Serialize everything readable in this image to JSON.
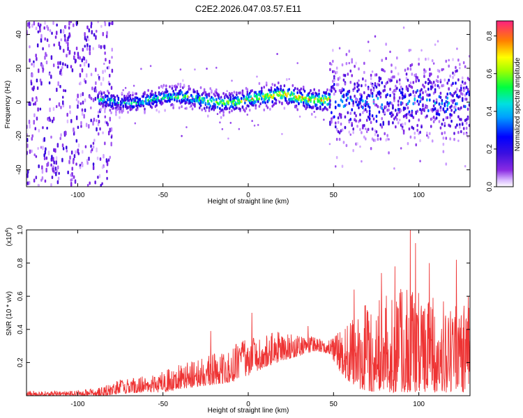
{
  "title": "C2E2.2026.047.03.57.E11",
  "colors": {
    "snr_line": "#ee3333",
    "frame": "#000000",
    "background": "#ffffff"
  },
  "chart_data": [
    {
      "type": "heatmap",
      "title": "C2E2.2026.047.03.57.E11",
      "xlabel": "Height of straight line (km)",
      "ylabel": "Frequency (Hz)",
      "xlim": [
        -130,
        130
      ],
      "ylim": [
        -50,
        48
      ],
      "x_ticks": [
        -100,
        -50,
        0,
        50,
        100
      ],
      "y_ticks": [
        -40,
        -20,
        0,
        20,
        40
      ],
      "colorbar": {
        "label": "Normalized spectral amplitude",
        "range": [
          0.0,
          0.88
        ],
        "ticks": [
          0.0,
          0.2,
          0.4,
          0.6,
          0.8
        ],
        "colormap": "rainbow (violet to red)"
      },
      "features": [
        {
          "name": "low-altitude noise",
          "x_range": [
            -130,
            -80
          ],
          "freq_range": [
            -50,
            48
          ],
          "amplitude": 0.15
        },
        {
          "name": "main echo trace",
          "x_range": [
            -88,
            48
          ],
          "center_freq_hz": 1.5,
          "halfwidth_hz": 6,
          "peak_amplitude": 0.8
        },
        {
          "name": "broadband scatter",
          "x_range": [
            48,
            130
          ],
          "freq_range": [
            -30,
            30
          ],
          "amplitude": 0.3
        }
      ]
    },
    {
      "type": "line",
      "xlabel": "Height of straight line (km)",
      "ylabel": "SNR (10 * v/v)",
      "scale_label": "(x10",
      "scale_exponent": "4",
      "xlim": [
        -130,
        130
      ],
      "ylim": [
        0,
        1.0
      ],
      "x_ticks": [
        -100,
        -50,
        0,
        50,
        100
      ],
      "y_ticks": [
        0.2,
        0.4,
        0.6,
        0.8,
        1.0
      ],
      "envelope": {
        "x": [
          -130,
          -100,
          -85,
          -75,
          -60,
          -50,
          -40,
          -25,
          -10,
          0,
          10,
          20,
          30,
          40,
          48,
          55,
          65,
          75,
          90,
          100,
          115,
          130
        ],
        "y_max": [
          0.03,
          0.03,
          0.06,
          0.1,
          0.12,
          0.15,
          0.19,
          0.24,
          0.3,
          0.35,
          0.37,
          0.39,
          0.38,
          0.36,
          0.34,
          0.4,
          0.52,
          0.6,
          0.65,
          0.63,
          0.58,
          0.55
        ],
        "y_min": [
          0.0,
          0.0,
          0.0,
          0.01,
          0.02,
          0.02,
          0.04,
          0.06,
          0.08,
          0.12,
          0.17,
          0.21,
          0.24,
          0.27,
          0.25,
          0.12,
          0.04,
          0.02,
          0.02,
          0.02,
          0.02,
          0.02
        ]
      },
      "spikes": [
        {
          "x": -22,
          "y": 0.39
        },
        {
          "x": 2,
          "y": 0.5
        },
        {
          "x": 35,
          "y": 0.42
        },
        {
          "x": 62,
          "y": 0.64
        },
        {
          "x": 78,
          "y": 0.74
        },
        {
          "x": 86,
          "y": 0.78
        },
        {
          "x": 95,
          "y": 1.0
        },
        {
          "x": 98,
          "y": 0.92
        },
        {
          "x": 106,
          "y": 0.8
        },
        {
          "x": 122,
          "y": 0.82
        },
        {
          "x": 129,
          "y": 0.6
        }
      ]
    }
  ]
}
